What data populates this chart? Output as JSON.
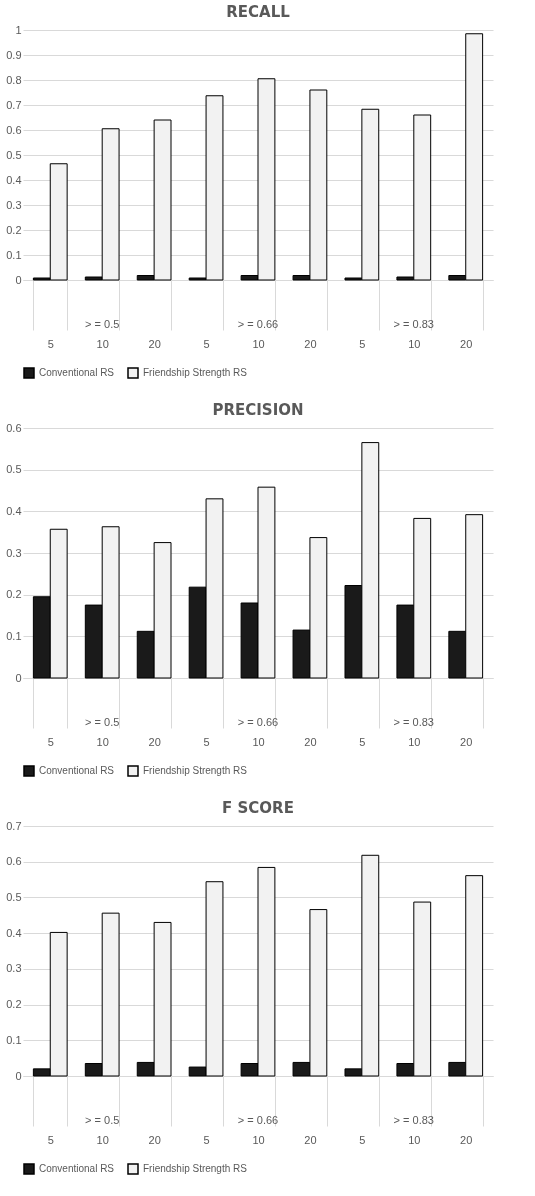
{
  "chart_data": [
    {
      "type": "bar",
      "title": "RECALL",
      "categories": [
        "5",
        "10",
        "20",
        "5",
        "10",
        "20",
        "5",
        "10",
        "20"
      ],
      "annotations": [
        "> = 0.5",
        "> = 0.66",
        "> = 0.83"
      ],
      "series": [
        {
          "name": "Conventional RS",
          "color": "#1a1a1a",
          "values": [
            0.008,
            0.012,
            0.018,
            0.008,
            0.018,
            0.018,
            0.008,
            0.012,
            0.018
          ]
        },
        {
          "name": "Friendship Strength RS",
          "color": "#f2f2f2",
          "values": [
            0.465,
            0.605,
            0.64,
            0.737,
            0.805,
            0.76,
            0.683,
            0.66,
            0.985
          ]
        }
      ],
      "ylim": [
        0,
        1
      ],
      "yticks": [
        0,
        0.1,
        0.2,
        0.3,
        0.4,
        0.5,
        0.6,
        0.7,
        0.8,
        0.9,
        1
      ],
      "grid": "y",
      "legend": "bottom"
    },
    {
      "type": "bar",
      "title": "PRECISION",
      "categories": [
        "5",
        "10",
        "20",
        "5",
        "10",
        "20",
        "5",
        "10",
        "20"
      ],
      "annotations": [
        "> = 0.5",
        "> = 0.66",
        "> = 0.83"
      ],
      "series": [
        {
          "name": "Conventional RS",
          "color": "#1a1a1a",
          "values": [
            0.195,
            0.175,
            0.112,
            0.218,
            0.18,
            0.115,
            0.222,
            0.175,
            0.112
          ]
        },
        {
          "name": "Friendship Strength RS",
          "color": "#f2f2f2",
          "values": [
            0.357,
            0.363,
            0.325,
            0.43,
            0.458,
            0.337,
            0.565,
            0.383,
            0.392
          ]
        }
      ],
      "ylim": [
        0,
        0.6
      ],
      "yticks": [
        0,
        0.1,
        0.2,
        0.3,
        0.4,
        0.5,
        0.6
      ],
      "grid": "y",
      "legend": "bottom"
    },
    {
      "type": "bar",
      "title": "F SCORE",
      "categories": [
        "5",
        "10",
        "20",
        "5",
        "10",
        "20",
        "5",
        "10",
        "20"
      ],
      "annotations": [
        "> = 0.5",
        "> = 0.66",
        "> = 0.83"
      ],
      "series": [
        {
          "name": "Conventional RS",
          "color": "#1a1a1a",
          "values": [
            0.02,
            0.035,
            0.038,
            0.025,
            0.035,
            0.038,
            0.02,
            0.035,
            0.038
          ]
        },
        {
          "name": "Friendship Strength RS",
          "color": "#f2f2f2",
          "values": [
            0.402,
            0.456,
            0.43,
            0.544,
            0.584,
            0.466,
            0.618,
            0.487,
            0.561
          ]
        }
      ],
      "ylim": [
        0,
        0.7
      ],
      "yticks": [
        0,
        0.1,
        0.2,
        0.3,
        0.4,
        0.5,
        0.6,
        0.7
      ],
      "grid": "y",
      "legend": "bottom"
    }
  ]
}
